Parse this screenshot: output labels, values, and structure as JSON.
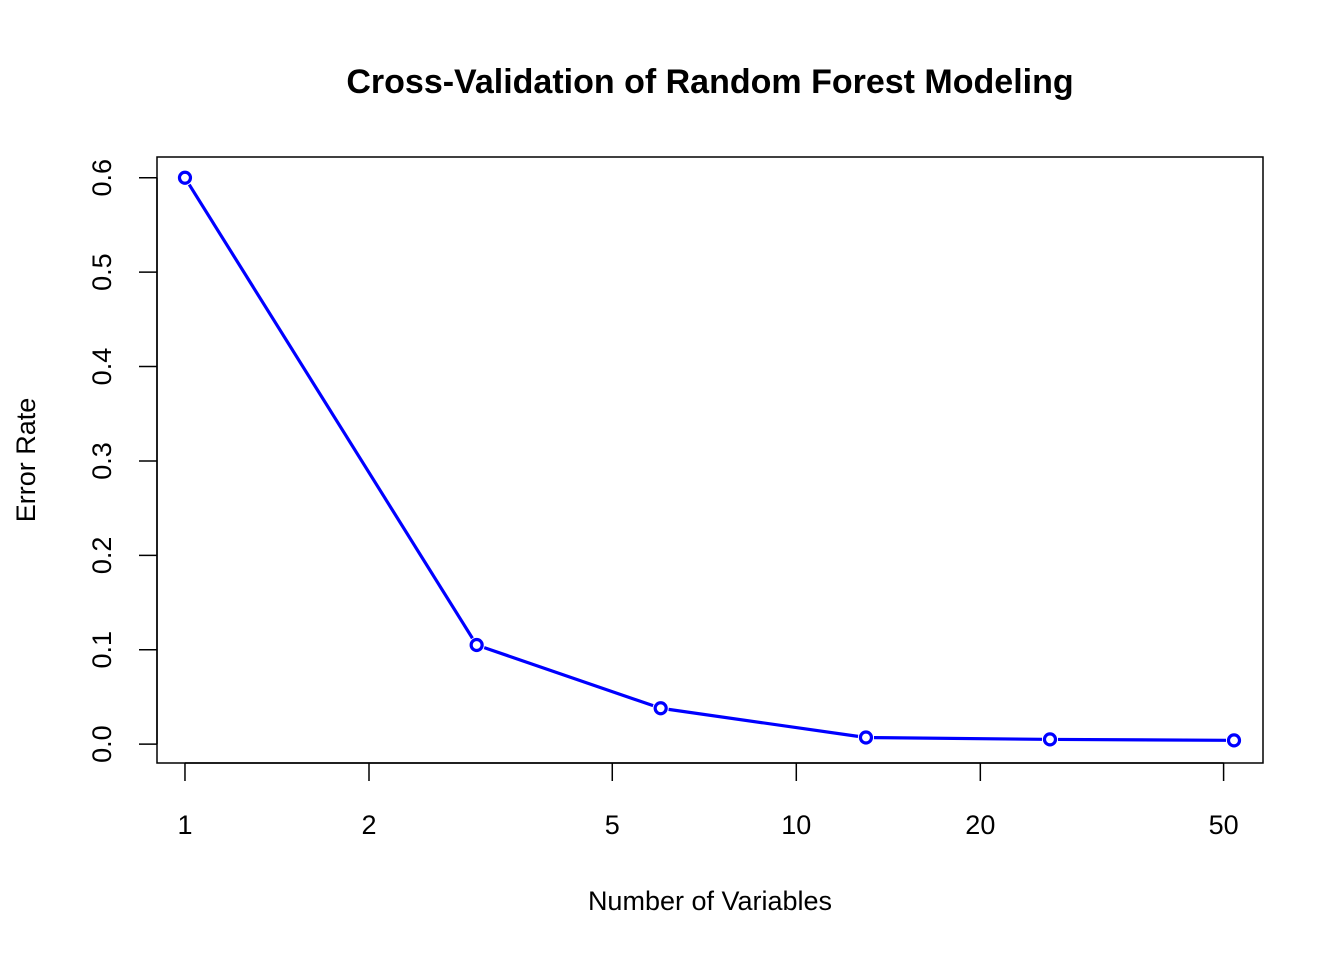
{
  "chart_data": {
    "type": "line",
    "title": "Cross-Validation of Random Forest Modeling",
    "xlabel": "Number of Variables",
    "ylabel": "Error Rate",
    "x_scale": "log",
    "xlim": [
      0.9,
      58
    ],
    "ylim": [
      -0.02,
      0.622
    ],
    "x_ticks": [
      1,
      2,
      5,
      10,
      20,
      50
    ],
    "x_tick_labels": [
      "1",
      "2",
      "5",
      "10",
      "20",
      "50"
    ],
    "y_ticks": [
      0.0,
      0.1,
      0.2,
      0.3,
      0.4,
      0.5,
      0.6
    ],
    "y_tick_labels": [
      "0.0",
      "0.1",
      "0.2",
      "0.3",
      "0.4",
      "0.5",
      "0.6"
    ],
    "grid": false,
    "series": [
      {
        "color": "#0000ff",
        "marker": "open-circle",
        "x": [
          1,
          3,
          6,
          13,
          26,
          52
        ],
        "y": [
          0.6,
          0.105,
          0.038,
          0.007,
          0.005,
          0.004
        ]
      }
    ]
  }
}
